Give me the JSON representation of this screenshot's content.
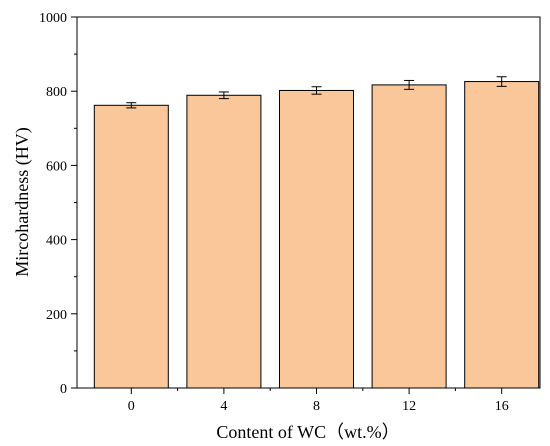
{
  "chart_data": {
    "type": "bar",
    "categories": [
      "0",
      "4",
      "8",
      "12",
      "16"
    ],
    "values": [
      762,
      789,
      802,
      817,
      826
    ],
    "errors": [
      7,
      9,
      10,
      12,
      13
    ],
    "xlabel": "Content of WC（wt.%）",
    "ylabel": "Mircohardness (HV)",
    "ylim": [
      0,
      1000
    ],
    "yticks": [
      0,
      200,
      400,
      600,
      800,
      1000
    ],
    "bar_color": "#f9c79a",
    "edge_color": "#000000",
    "grid": false,
    "legend": "none"
  }
}
